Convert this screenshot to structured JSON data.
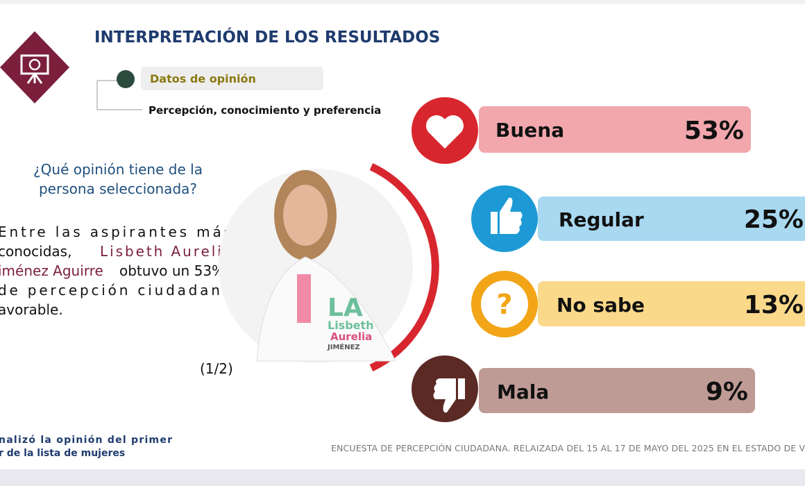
{
  "header": {
    "title": "INTERPRETACIÓN DE LOS RESULTADOS",
    "section": "Datos de opinión",
    "subsection": "Percepción, conocimiento y preferencia"
  },
  "question": "¿Qué opinión tiene de la persona seleccionada?",
  "body": {
    "lines": [
      "Entre las aspirantes más",
      "conocidas,",
      "Lisbeth Aurelia",
      "iménez Aguirre",
      "obtuvo un 53%",
      "de percepción ciudadana",
      "avorable."
    ],
    "page": "(1/2)"
  },
  "photo": {
    "logo": "LA",
    "first": "Lisbeth",
    "second": "Aurelia",
    "last": "JIMÉNEZ"
  },
  "results": [
    {
      "label": "Buena",
      "value": "53%"
    },
    {
      "label": "Regular",
      "value": "25%"
    },
    {
      "label": "No sabe",
      "value": "13%"
    },
    {
      "label": "Mala",
      "value": "9%"
    }
  ],
  "footer": {
    "left": [
      "nalizó la opinión del primer",
      "r de la lista de mujeres"
    ],
    "right": "ENCUESTA DE PERCEPCIÓN CIUDADANA. RELAIZADA DEL 15 AL 17 DE MAYO DEL 2025 EN EL ESTADO DE V"
  }
}
